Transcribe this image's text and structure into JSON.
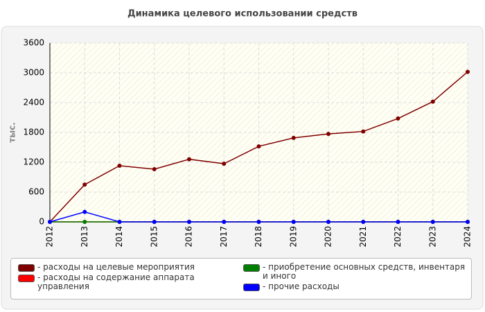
{
  "chart_data": {
    "type": "line",
    "title": "Динамика целевого использовании средств",
    "y_label": "тыс.",
    "categories": [
      "2012",
      "2013",
      "2014",
      "2015",
      "2016",
      "2017",
      "2018",
      "2019",
      "2020",
      "2021",
      "2022",
      "2023",
      "2024"
    ],
    "ylim": [
      0,
      3600
    ],
    "yticks": [
      0,
      600,
      1200,
      1800,
      2400,
      3000,
      3600
    ],
    "grid": true,
    "series": [
      {
        "name": "- расходы на целевые мероприятия",
        "color": "#800000",
        "values": [
          0,
          750,
          1130,
          1060,
          1260,
          1170,
          1520,
          1690,
          1770,
          1820,
          2080,
          2420,
          3020
        ]
      },
      {
        "name": "- расходы на содержание аппарата управления",
        "color": "#ff0000",
        "values": [
          0,
          0,
          0,
          0,
          0,
          0,
          0,
          0,
          0,
          0,
          0,
          0,
          0
        ]
      },
      {
        "name": "- приобретение основных средств, инвентаря и иного",
        "color": "#008000",
        "values": [
          0,
          0,
          0,
          0,
          0,
          0,
          0,
          0,
          0,
          0,
          0,
          0,
          0
        ]
      },
      {
        "name": "- прочие расходы",
        "color": "#0000ff",
        "values": [
          0,
          200,
          0,
          0,
          0,
          0,
          0,
          0,
          0,
          0,
          0,
          0,
          0
        ]
      }
    ]
  }
}
